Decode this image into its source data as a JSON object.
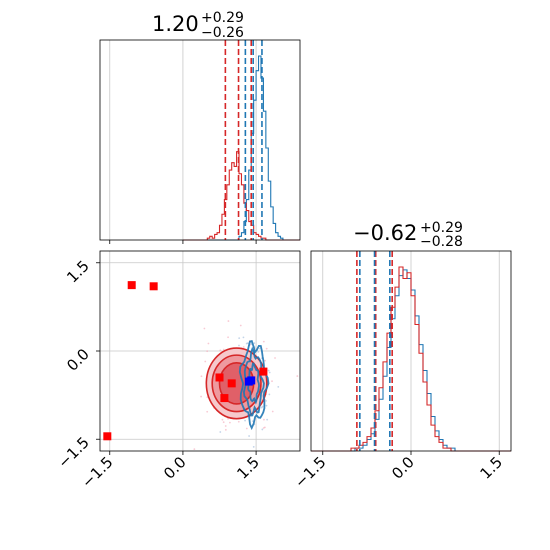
{
  "colors": {
    "blue": "#1f77b4",
    "red": "#d62728",
    "marker_red": "#ff0000",
    "marker_blue": "#0000ff",
    "grid": "#c8c8c8"
  },
  "chart_data": {
    "type": "corner",
    "grid": true,
    "parameters": [
      {
        "title": {
          "value": "1.20",
          "plus": "+0.29",
          "minus": "−0.26"
        },
        "range": [
          -1.7,
          2.4
        ],
        "quantiles": {
          "blue": [
            1.28,
            1.44,
            1.62
          ],
          "red": [
            0.87,
            1.14,
            1.4
          ]
        }
      },
      {
        "title": {
          "value": "−0.62",
          "plus": "+0.29",
          "minus": "−0.28"
        },
        "range": [
          -1.7,
          1.7
        ],
        "quantiles": {
          "blue": [
            -0.87,
            -0.62,
            -0.36
          ],
          "red": [
            -0.92,
            -0.6,
            -0.32
          ]
        }
      }
    ],
    "x_ticks": [
      -1.5,
      0.0,
      1.5
    ],
    "x_tick_labels": [
      "−1.5",
      "0.0",
      "1.5"
    ],
    "y_ticks": [
      -1.5,
      0.0,
      1.5
    ],
    "y_tick_labels": [
      "−1.5",
      "0.0",
      "1.5"
    ],
    "hist_p1": {
      "bins": [
        0.0,
        0.05,
        0.1,
        0.15,
        0.2,
        0.25,
        0.3,
        0.35,
        0.4,
        0.45,
        0.5,
        0.55,
        0.6,
        0.65,
        0.7,
        0.75,
        0.8,
        0.85,
        0.9,
        0.95,
        1.0,
        1.05,
        1.1,
        1.15,
        1.2,
        1.25,
        1.3,
        1.35,
        1.4,
        1.45,
        1.5,
        1.55,
        1.6,
        1.65,
        1.7,
        1.75,
        1.8,
        1.85,
        1.9,
        1.95,
        2.0,
        2.05,
        2.1,
        2.15,
        2.2,
        2.25,
        2.3,
        2.35,
        2.4
      ],
      "blue": [
        0,
        0,
        0,
        0,
        0,
        0,
        0,
        0,
        0,
        0,
        0,
        0,
        0,
        0,
        0,
        0,
        0,
        0,
        0,
        0,
        0,
        0,
        0,
        2,
        4,
        10,
        22,
        38,
        58,
        76,
        92,
        100,
        88,
        70,
        50,
        32,
        18,
        9,
        4,
        2,
        1,
        0,
        0,
        0,
        0,
        0,
        0,
        0
      ],
      "red": [
        0,
        0,
        0,
        0,
        0,
        0,
        0,
        0,
        0,
        0,
        1,
        2,
        1,
        3,
        4,
        8,
        14,
        22,
        30,
        38,
        42,
        40,
        48,
        36,
        30,
        20,
        16,
        10,
        8,
        4,
        3,
        2,
        1,
        1,
        0,
        0,
        0,
        0,
        0,
        0,
        0,
        0,
        0,
        0,
        0,
        0,
        0,
        0
      ]
    },
    "hist_p2": {
      "bin_start": -1.7,
      "bin_width": 0.068,
      "blue": [
        0,
        0,
        0,
        0,
        0,
        0,
        0,
        0,
        0,
        0,
        0,
        1,
        1,
        2,
        4,
        6,
        11,
        18,
        26,
        36,
        46,
        54,
        61,
        63,
        60,
        56,
        47,
        37,
        28,
        20,
        12,
        7,
        4,
        2,
        1,
        1,
        0,
        0,
        0,
        0,
        0,
        0,
        0,
        0,
        0,
        0,
        0,
        0,
        0,
        0
      ],
      "red": [
        0,
        0,
        0,
        0,
        0,
        0,
        0,
        0,
        0,
        0,
        1,
        1,
        2,
        3,
        5,
        8,
        14,
        22,
        31,
        41,
        50,
        57,
        64,
        60,
        62,
        54,
        44,
        34,
        24,
        16,
        9,
        5,
        3,
        1,
        1,
        0,
        0,
        0,
        0,
        0,
        0,
        0,
        0,
        0,
        0,
        0,
        0,
        0,
        0,
        0
      ]
    },
    "contours": {
      "red": {
        "center": [
          1.1,
          -0.55
        ],
        "radii": [
          [
            0.35,
            0.35
          ],
          [
            0.5,
            0.48
          ],
          [
            0.62,
            0.6
          ]
        ]
      },
      "blue": {
        "center": [
          1.45,
          -0.55
        ],
        "radii": [
          [
            0.1,
            0.3
          ],
          [
            0.18,
            0.5
          ],
          [
            0.26,
            0.65
          ]
        ]
      }
    },
    "markers_red": [
      [
        -1.55,
        -1.45
      ],
      [
        -1.05,
        1.12
      ],
      [
        -0.6,
        1.1
      ],
      [
        0.75,
        -0.45
      ],
      [
        1.0,
        -0.55
      ],
      [
        0.85,
        -0.8
      ],
      [
        1.65,
        -0.35
      ]
    ],
    "markers_blue": [
      [
        1.35,
        -0.52
      ],
      [
        1.4,
        -0.5
      ]
    ]
  }
}
